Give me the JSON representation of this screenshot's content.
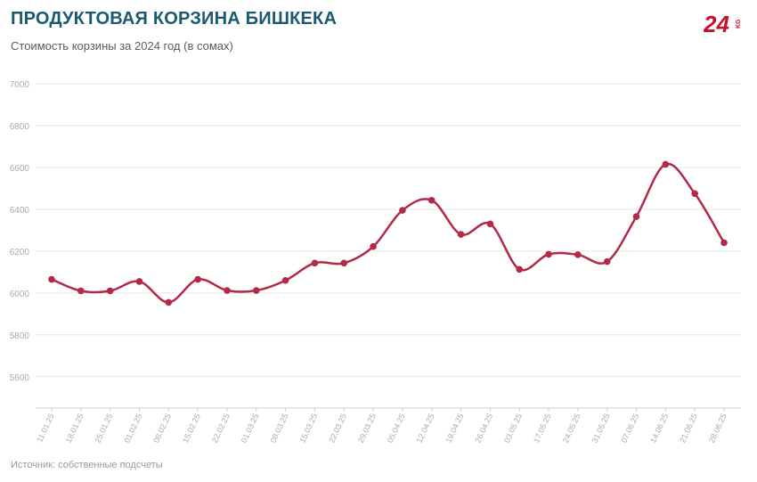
{
  "header": {
    "title": "ПРОДУКТОВАЯ КОРЗИНА БИШКЕКА",
    "subtitle": "Стоимость корзины за 2024 год (в сомах)"
  },
  "logo": {
    "text": "24",
    "suffix": "KG",
    "color": "#c8102e"
  },
  "footer": {
    "source": "Источник: собственные подсчеты"
  },
  "colors": {
    "line": "#b22a48",
    "grid": "#e6e6e6",
    "axis_text": "#aaaaaa",
    "title": "#1a5a70"
  },
  "chart_data": {
    "type": "line",
    "title": "ПРОДУКТОВАЯ КОРЗИНА БИШКЕКА",
    "subtitle": "Стоимость корзины за 2024 год (в сомах)",
    "xlabel": "",
    "ylabel": "",
    "ylim": [
      5450,
      7000
    ],
    "yticks": [
      5600,
      5800,
      6000,
      6200,
      6400,
      6600,
      6800,
      7000
    ],
    "grid": true,
    "legend": "none",
    "categories": [
      "11.01.25",
      "18.01.25",
      "25.01.25",
      "01.02.25",
      "08.02.25",
      "15.02.25",
      "22.02.25",
      "01.03.25",
      "08.03.25",
      "15.03.25",
      "22.03.25",
      "29.03.25",
      "05.04.25",
      "12.04.25",
      "19.04.25",
      "26.04.25",
      "03.05.25",
      "17.05.25",
      "24.05.25",
      "31.05.25",
      "07.06.25",
      "14.06.25",
      "21.06.25",
      "28.06.25"
    ],
    "series": [
      {
        "values": [
          6065,
          6010,
          6010,
          6055,
          5955,
          6065,
          6012,
          6012,
          6060,
          6143,
          6143,
          6222,
          6395,
          6443,
          6280,
          6330,
          6113,
          6185,
          6183,
          6150,
          6365,
          6615,
          6475,
          6240
        ]
      }
    ]
  }
}
